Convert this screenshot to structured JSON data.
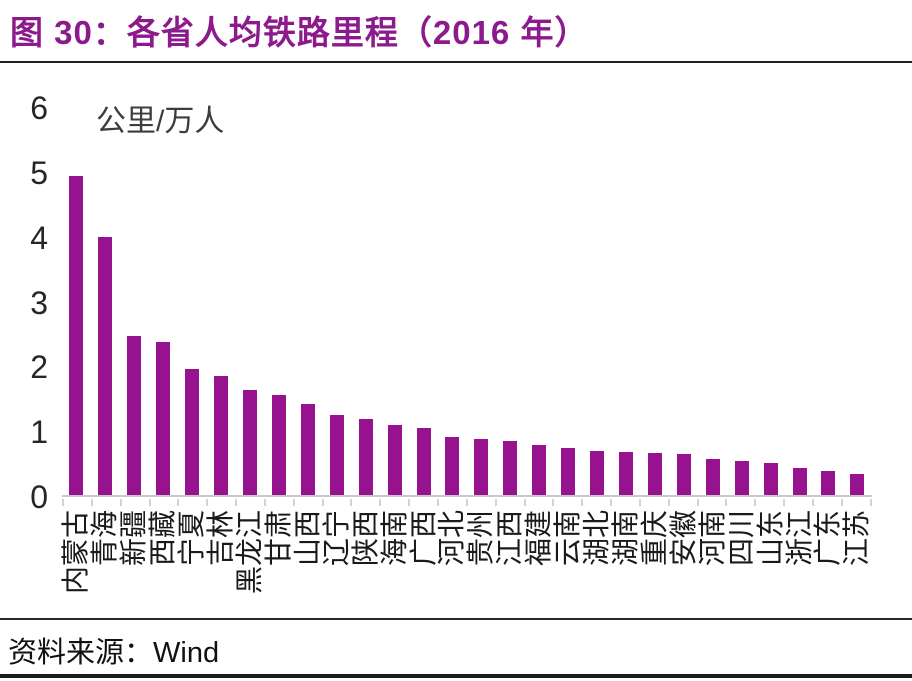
{
  "header": {
    "title": "图 30：各省人均铁路里程（2016 年）"
  },
  "footer": {
    "source_label": "资料来源：",
    "source_value": "Wind"
  },
  "colors": {
    "title_accent": "#8c1a8c",
    "bar": "#97128e",
    "axis_line": "#c8c8c8",
    "axis_tick": "#d8d0d8",
    "text": "#1a1a1a"
  },
  "chart_data": {
    "type": "bar",
    "title": "各省人均铁路里程（2016 年）",
    "unit_label": "公里/万人",
    "xlabel": "",
    "ylabel": "公里/万人",
    "ylim": [
      0,
      6
    ],
    "yticks": [
      0,
      1,
      2,
      3,
      4,
      5,
      6
    ],
    "grid": false,
    "legend": "none",
    "bar_color": "#97128e",
    "categories": [
      "内蒙古",
      "青海",
      "新疆",
      "西藏",
      "宁夏",
      "吉林",
      "黑龙江",
      "甘肃",
      "山西",
      "辽宁",
      "陕西",
      "海南",
      "广西",
      "河北",
      "贵州",
      "江西",
      "福建",
      "云南",
      "湖北",
      "湖南",
      "重庆",
      "安徽",
      "河南",
      "四川",
      "山东",
      "浙江",
      "广东",
      "江苏"
    ],
    "values": [
      4.92,
      3.98,
      2.45,
      2.36,
      1.94,
      1.84,
      1.62,
      1.55,
      1.4,
      1.23,
      1.17,
      1.08,
      1.03,
      0.89,
      0.86,
      0.83,
      0.77,
      0.73,
      0.68,
      0.66,
      0.65,
      0.64,
      0.55,
      0.53,
      0.5,
      0.42,
      0.37,
      0.33
    ]
  }
}
